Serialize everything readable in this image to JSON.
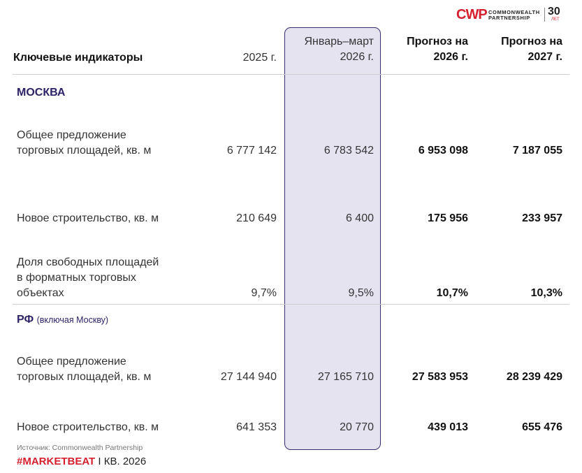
{
  "logo": {
    "mark": "CWP",
    "name_line1": "COMMONWEALTH",
    "name_line2": "PARTNERSHIP",
    "anniversary": "30",
    "anniversary_unit": "ЛЕТ",
    "brand_color": "#d4202f"
  },
  "header": {
    "title": "Ключевые индикаторы",
    "col_2025": "2025 г.",
    "col_q1": "Январь–март\n2026 г.",
    "col_f2026": "Прогноз на\n2026 г.",
    "col_f2027": "Прогноз на\n2027 г."
  },
  "sections": {
    "moscow": {
      "title": "МОСКВА",
      "rows": [
        {
          "label": "Общее предложение\nторговых площадей, кв. м",
          "v2025": "6 777 142",
          "q1_2026": "6 783 542",
          "f2026": "6 953 098",
          "f2027": "7 187 055"
        },
        {
          "label": "Новое строительство, кв. м",
          "v2025": "210 649",
          "q1_2026": "6 400",
          "f2026": "175 956",
          "f2027": "233 957"
        },
        {
          "label": "Доля свободных площадей\nв форматных торговых\nобъектах",
          "v2025": "9,7%",
          "q1_2026": "9,5%",
          "f2026": "10,7%",
          "f2027": "10,3%"
        }
      ]
    },
    "rf": {
      "title": "РФ",
      "note": "(включая Москву)",
      "rows": [
        {
          "label": "Общее предложение\nторговых площадей, кв. м",
          "v2025": "27 144 940",
          "q1_2026": "27 165 710",
          "f2026": "27 583 953",
          "f2027": "28 239 429"
        },
        {
          "label": "Новое строительство, кв. м",
          "v2025": "641 353",
          "q1_2026": "20 770",
          "f2026": "439 013",
          "f2027": "655 476"
        }
      ]
    }
  },
  "source": "Источник: Commonwealth Partnership",
  "footer": {
    "brand": "#MARKETBEAT",
    "separator": "I",
    "period": "КВ. 2026"
  },
  "colors": {
    "highlight_fill": "#e6e3f1",
    "highlight_border": "#3a2d6e",
    "section_title": "#2e2266",
    "accent_red": "#d4202f"
  }
}
